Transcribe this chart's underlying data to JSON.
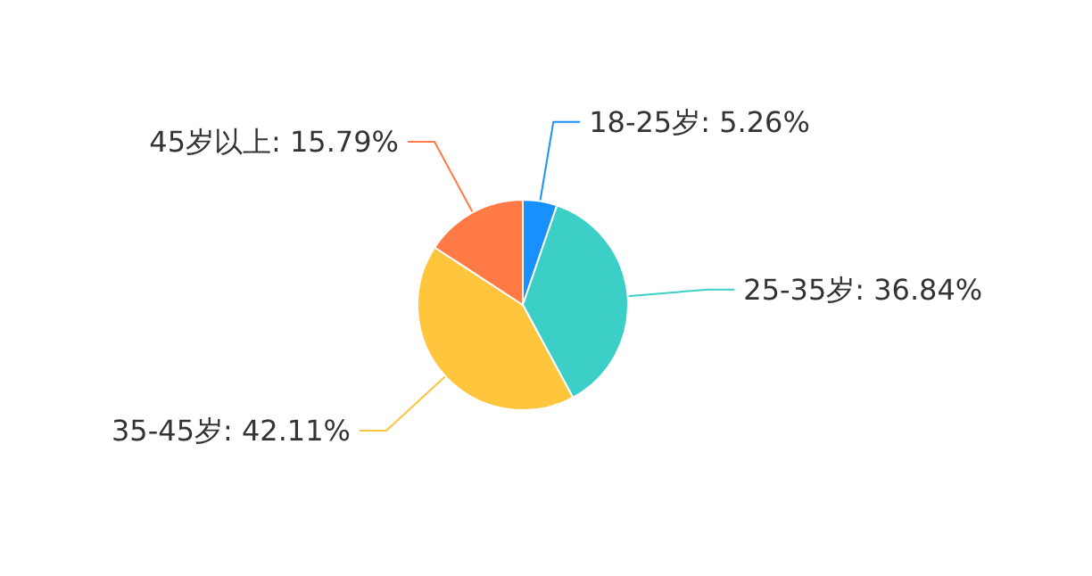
{
  "chart_data": {
    "type": "pie",
    "categories": [
      "18-25岁",
      "25-35岁",
      "35-45岁",
      "45岁以上"
    ],
    "values": [
      5.26,
      36.84,
      42.11,
      15.79
    ],
    "value_labels": [
      "5.26%",
      "36.84%",
      "42.11%",
      "15.79%"
    ],
    "colors": [
      "#1890ff",
      "#3bcfc8",
      "#ffc53d",
      "#ff7a45"
    ],
    "legend": false
  }
}
